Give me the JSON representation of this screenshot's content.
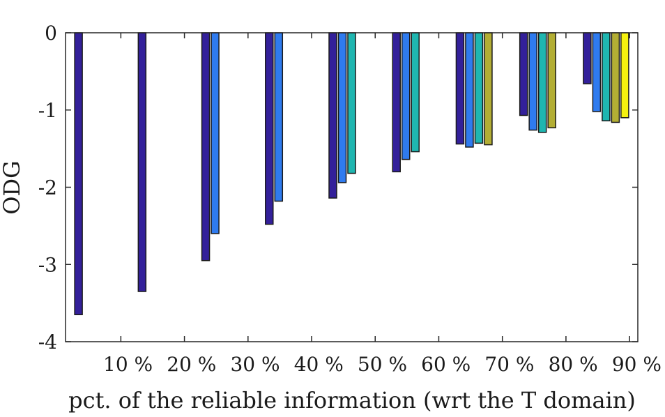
{
  "chart_data": {
    "type": "bar",
    "xlabel": "pct. of the reliable information (wrt the T domain)",
    "ylabel": "ODG",
    "ylim": [
      -4,
      0
    ],
    "yticks": [
      "0",
      "-1",
      "-2",
      "-3",
      "-4"
    ],
    "categories": [
      "10 %",
      "20 %",
      "30 %",
      "40 %",
      "50 %",
      "60 %",
      "70 %",
      "80 %",
      "90 %"
    ],
    "grid": false,
    "legend": "none",
    "series_colors": [
      "#33209a",
      "#2f7bef",
      "#1fb6b0",
      "#b3ae34",
      "#f5f10f"
    ],
    "groups": [
      [
        -3.65
      ],
      [
        -3.35
      ],
      [
        -2.95,
        -2.6
      ],
      [
        -2.48,
        -2.18
      ],
      [
        -2.14,
        -1.94,
        -1.82
      ],
      [
        -1.8,
        -1.64,
        -1.54
      ],
      [
        -1.44,
        -1.48,
        -1.43,
        -1.45
      ],
      [
        -1.07,
        -1.26,
        -1.29,
        -1.23
      ],
      [
        -0.66,
        -1.02,
        -1.14,
        -1.16,
        -1.1
      ]
    ]
  }
}
